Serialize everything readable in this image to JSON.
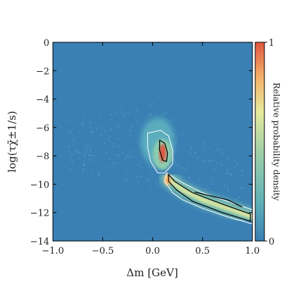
{
  "chart_data": {
    "type": "heatmap",
    "title": "",
    "xlabel": "Δm [GeV]",
    "ylabel": "log(τχ̃±1/s)",
    "xlim": [
      -1.0,
      1.0
    ],
    "ylim": [
      -14,
      0
    ],
    "x_ticks": [
      -1.0,
      -0.5,
      0.0,
      0.5,
      1.0
    ],
    "x_tick_labels": [
      "−1.0",
      "−0.5",
      "0.0",
      "0.5",
      "1.0"
    ],
    "y_ticks": [
      0,
      -2,
      -4,
      -6,
      -8,
      -10,
      -12,
      -14
    ],
    "y_tick_labels": [
      "0",
      "−2",
      "−4",
      "−6",
      "−8",
      "−10",
      "−12",
      "−14"
    ],
    "colorbar": {
      "label": "Relative probability density",
      "min": 0,
      "max": 1,
      "tick_labels": [
        "0",
        "1"
      ],
      "colors": [
        "#3a7fb5",
        "#5fb2b8",
        "#9fd0a6",
        "#e6ea9c",
        "#f4b26a",
        "#e0573f"
      ]
    },
    "background_color": "#3a80b4",
    "density_features": [
      {
        "name": "low-density scatter",
        "x_range": [
          -0.85,
          0.95
        ],
        "y_range": [
          -11,
          -4
        ],
        "level": 0.05
      },
      {
        "name": "upper blob",
        "x_center": 0.05,
        "y_center": -7.0,
        "level": 0.35
      },
      {
        "name": "peak core",
        "x_center": 0.1,
        "y_center": -7.8,
        "level": 0.9
      },
      {
        "name": "lower tail",
        "x": [
          0.15,
          0.3,
          0.5,
          0.75,
          1.0
        ],
        "y": [
          -9.6,
          -10.4,
          -11.1,
          -11.7,
          -12.3
        ],
        "level": 0.55
      }
    ],
    "contours": [
      {
        "name": "outer",
        "color": "#ffffff",
        "level": "95%"
      },
      {
        "name": "inner",
        "color": "#000000",
        "level": "68%"
      }
    ]
  }
}
